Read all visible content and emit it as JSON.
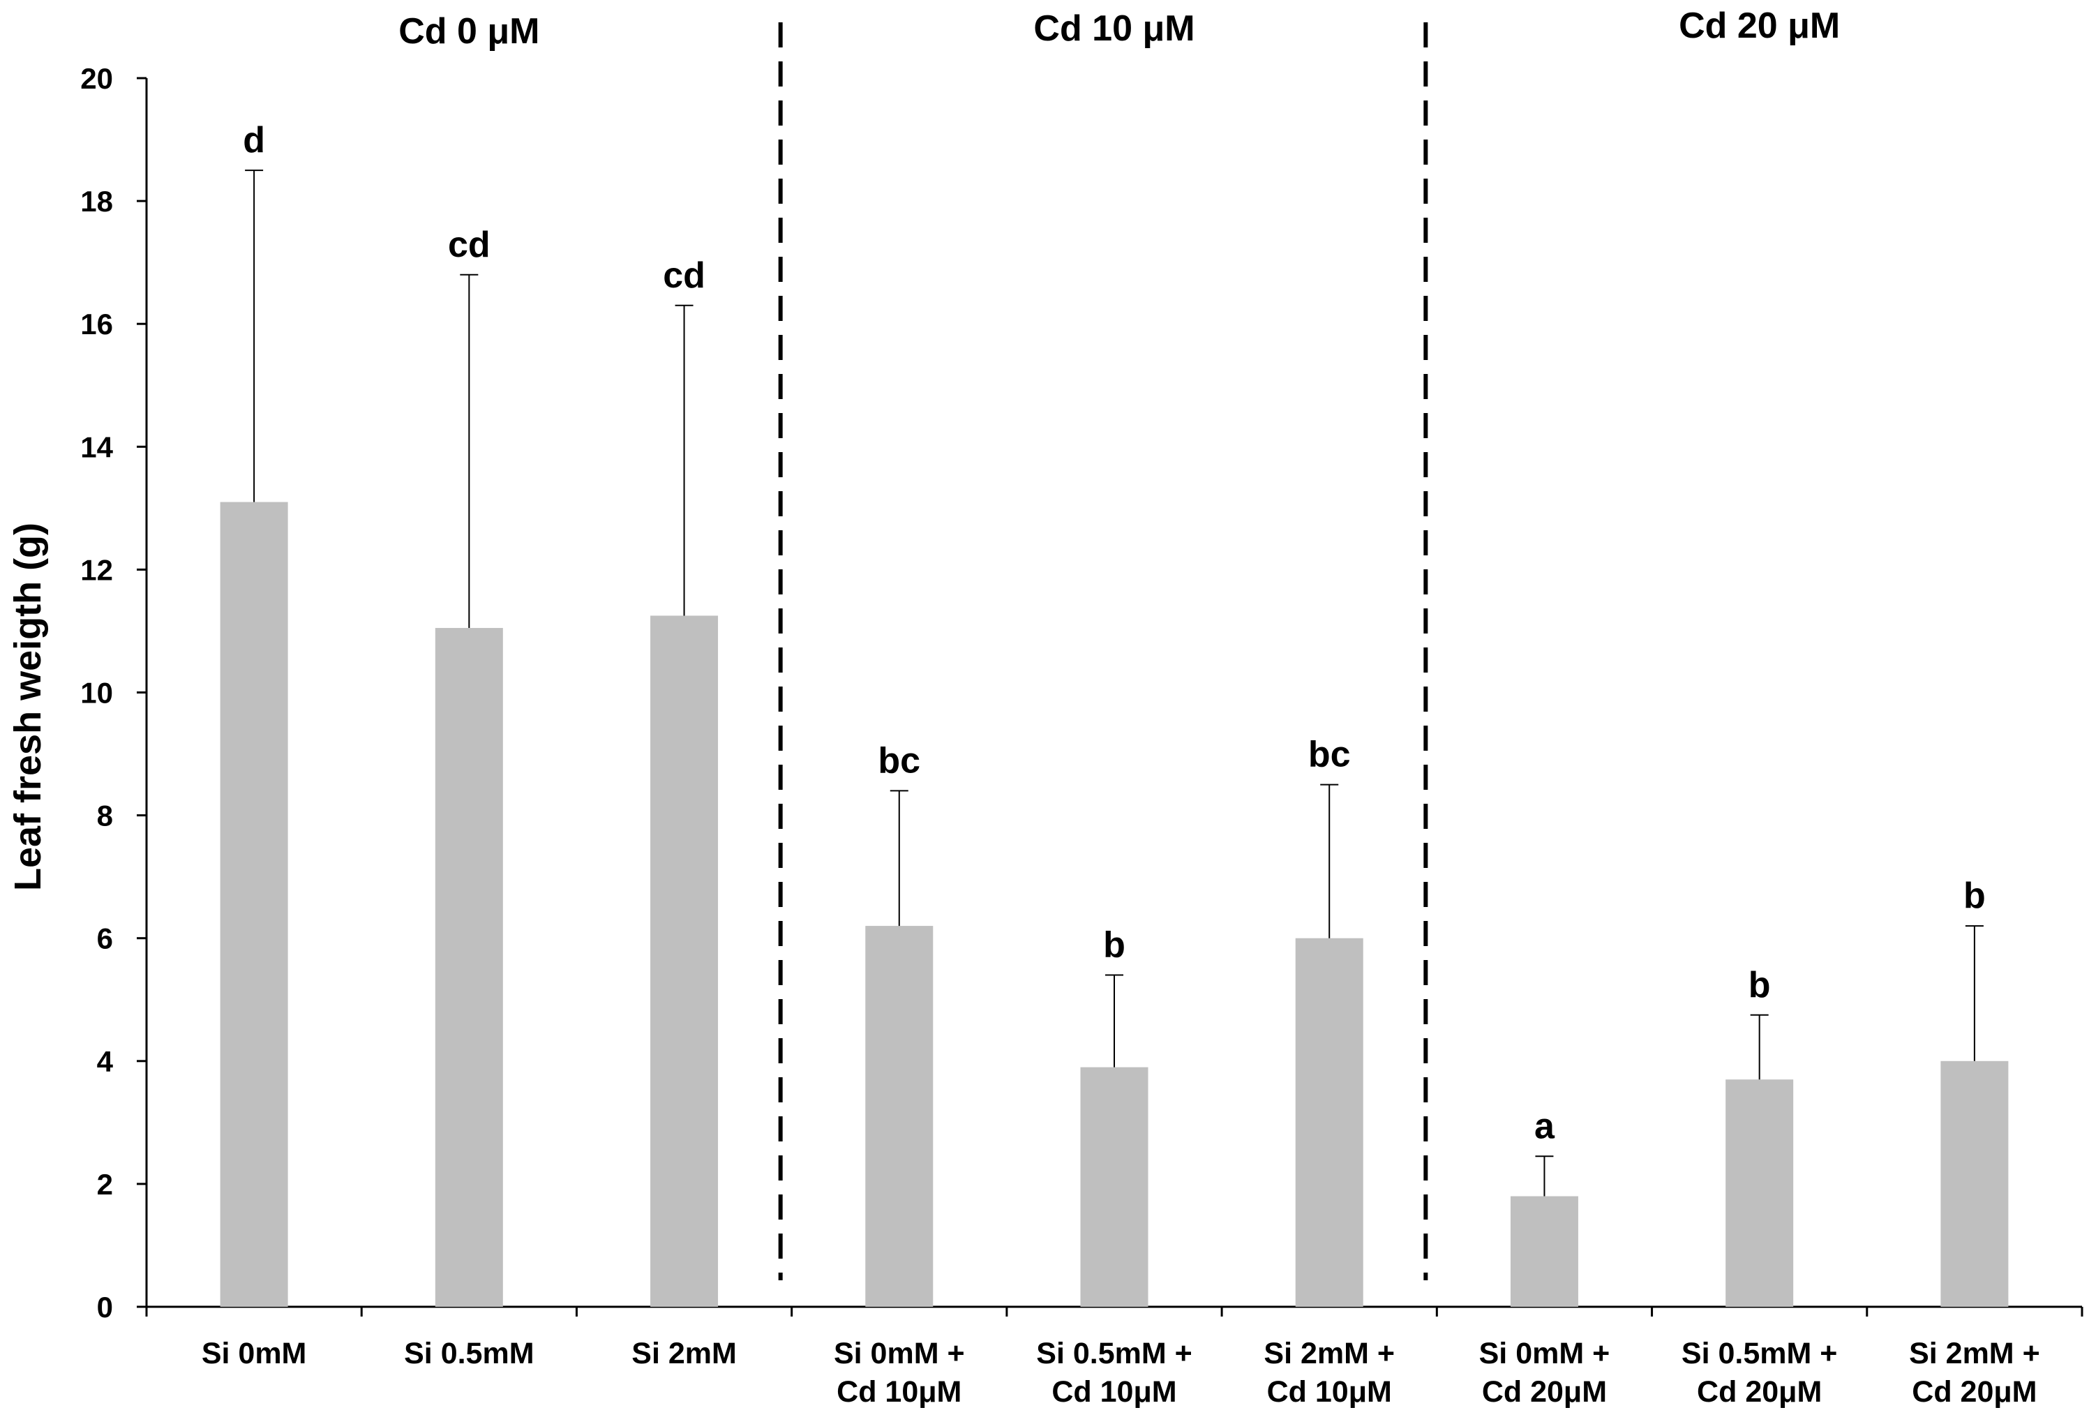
{
  "chart_data": {
    "type": "bar",
    "title": "",
    "xlabel": "",
    "ylabel": "Leaf fresh weigth (g)",
    "ylim": [
      0,
      20
    ],
    "yticks": [
      0,
      2,
      4,
      6,
      8,
      10,
      12,
      14,
      16,
      18,
      20
    ],
    "grid": false,
    "legend": "none",
    "bar_color": "#bfbfbf",
    "categories": [
      [
        "Si 0mM"
      ],
      [
        "Si 0.5mM"
      ],
      [
        "Si 2mM"
      ],
      [
        "Si 0mM +",
        "Cd 10μM"
      ],
      [
        "Si 0.5mM +",
        "Cd 10μM"
      ],
      [
        "Si 2mM +",
        "Cd 10μM"
      ],
      [
        "Si 0mM +",
        "Cd 20μM"
      ],
      [
        "Si 0.5mM +",
        "Cd 20μM"
      ],
      [
        "Si 2mM +",
        "Cd 20μM"
      ]
    ],
    "values": [
      13.1,
      11.05,
      11.25,
      6.2,
      3.9,
      6.0,
      1.8,
      3.7,
      4.0
    ],
    "error_upper": [
      18.5,
      16.8,
      16.3,
      8.4,
      5.4,
      8.5,
      2.45,
      4.75,
      6.2
    ],
    "significance_letters": [
      "d",
      "cd",
      "cd",
      "bc",
      "b",
      "bc",
      "a",
      "b",
      "b"
    ],
    "groups": [
      {
        "label": "Cd 0 μM",
        "members": [
          0,
          1,
          2
        ]
      },
      {
        "label": "Cd 10 μM",
        "members": [
          3,
          4,
          5
        ]
      },
      {
        "label": "Cd 20 μM",
        "members": [
          6,
          7,
          8
        ]
      }
    ]
  }
}
